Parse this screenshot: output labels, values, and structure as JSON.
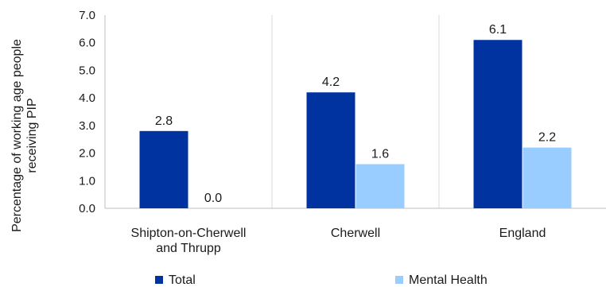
{
  "chart_data": {
    "type": "bar",
    "title": "",
    "xlabel": "",
    "ylabel_lines": [
      "Percentage of working age people",
      "receiving PIP"
    ],
    "categories": [
      [
        "Shipton-on-Cherwell",
        "and Thrupp"
      ],
      [
        "Cherwell"
      ],
      [
        "England"
      ]
    ],
    "series": [
      {
        "name": "Total",
        "color": "#0033a0",
        "values": [
          2.8,
          4.2,
          6.1
        ],
        "labels": [
          "2.8",
          "4.2",
          "6.1"
        ]
      },
      {
        "name": "Mental Health",
        "color": "#99ccff",
        "values": [
          0.0,
          1.6,
          2.2
        ],
        "labels": [
          "0.0",
          "1.6",
          "2.2"
        ]
      }
    ],
    "ylim": [
      0,
      7
    ],
    "yticks": [
      "0.0",
      "1.0",
      "2.0",
      "3.0",
      "4.0",
      "5.0",
      "6.0",
      "7.0"
    ],
    "grid": "vertical separators between categories",
    "legend_position": "bottom"
  }
}
